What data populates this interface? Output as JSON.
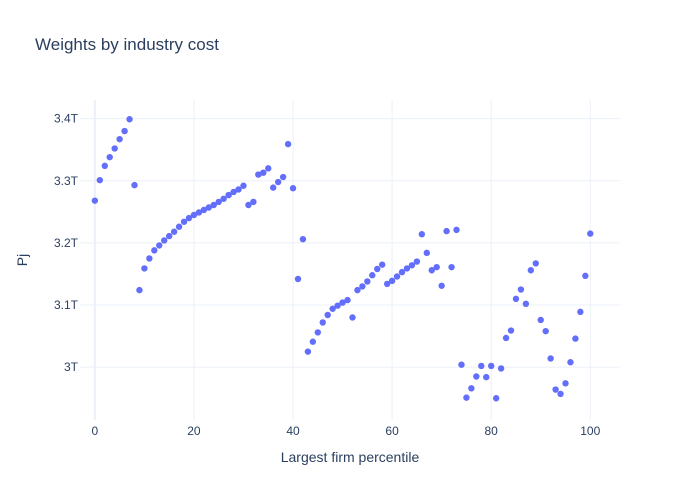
{
  "chart_data": {
    "type": "scatter",
    "title": "Weights by industry cost",
    "xlabel": "Largest firm percentile",
    "ylabel": "Pj",
    "xlim": [
      -3,
      106
    ],
    "ylim": [
      2.915,
      3.43
    ],
    "grid": true,
    "legend": "none",
    "marker_color": "#636efa",
    "x_ticks": [
      0,
      20,
      40,
      60,
      80,
      100
    ],
    "x_tick_labels": [
      "0",
      "20",
      "40",
      "60",
      "80",
      "100"
    ],
    "y_ticks": [
      3.0,
      3.1,
      3.2,
      3.3,
      3.4
    ],
    "y_tick_labels": [
      "3T",
      "3.1T",
      "3.2T",
      "3.3T",
      "3.4T"
    ],
    "series": [
      {
        "x": [
          0,
          1,
          2,
          3,
          4,
          5,
          6,
          7,
          8,
          9,
          10,
          11,
          12,
          13,
          14,
          15,
          16,
          17,
          18,
          19,
          20,
          21,
          22,
          23,
          24,
          25,
          26,
          27,
          28,
          29,
          30,
          31,
          32,
          33,
          34,
          35,
          36,
          37,
          38,
          39,
          40,
          41,
          42,
          43,
          44,
          45,
          46,
          47,
          48,
          49,
          50,
          51,
          52,
          53,
          54,
          55,
          56,
          57,
          58,
          59,
          60,
          61,
          62,
          63,
          64,
          65,
          66,
          67,
          68,
          69,
          70,
          71,
          72,
          73,
          74,
          75,
          76,
          77,
          78,
          79,
          80,
          81,
          82,
          83,
          84,
          85,
          86,
          87,
          88,
          89,
          90,
          91,
          92,
          93,
          94,
          95,
          96,
          97,
          98,
          99,
          100
        ],
        "y": [
          3.268,
          3.301,
          3.324,
          3.338,
          3.352,
          3.367,
          3.38,
          3.399,
          3.293,
          3.124,
          3.159,
          3.175,
          3.188,
          3.196,
          3.204,
          3.211,
          3.218,
          3.226,
          3.234,
          3.24,
          3.245,
          3.249,
          3.253,
          3.257,
          3.261,
          3.266,
          3.271,
          3.277,
          3.282,
          3.286,
          3.292,
          3.261,
          3.266,
          3.31,
          3.313,
          3.32,
          3.289,
          3.298,
          3.306,
          3.359,
          3.288,
          3.142,
          3.206,
          3.025,
          3.041,
          3.056,
          3.072,
          3.084,
          3.094,
          3.099,
          3.104,
          3.108,
          3.08,
          3.124,
          3.13,
          3.138,
          3.148,
          3.158,
          3.165,
          3.134,
          3.139,
          3.146,
          3.153,
          3.159,
          3.164,
          3.17,
          3.214,
          3.184,
          3.156,
          3.161,
          3.131,
          3.219,
          3.161,
          3.221,
          3.004,
          2.951,
          2.966,
          2.985,
          3.002,
          2.984,
          3.002,
          2.95,
          2.998,
          3.047,
          3.059,
          3.11,
          3.125,
          3.102,
          3.156,
          3.167,
          3.076,
          3.058,
          3.014,
          2.964,
          2.957,
          2.974,
          3.008,
          3.046,
          3.089,
          3.147,
          3.215
        ]
      }
    ]
  }
}
